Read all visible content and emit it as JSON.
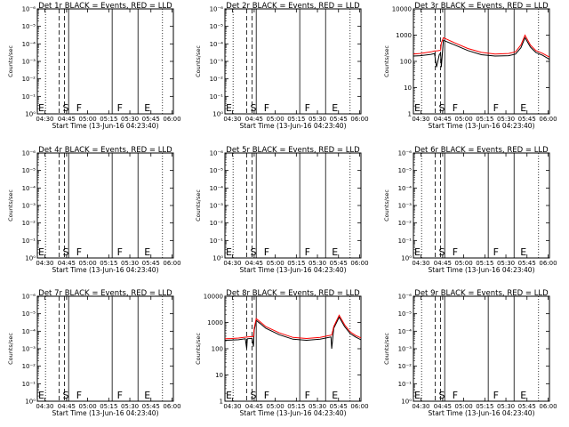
{
  "chart_data": [
    {
      "title": "Det 1r BLACK = Events, RED = LLD",
      "type": "line",
      "ylabel": "Counts/sec",
      "xlabel": "Start Time (13-Jun-16 04:23:40)",
      "x_ticks": [
        "04:30",
        "04:45",
        "05:00",
        "05:15",
        "05:30",
        "05:45",
        "06:00"
      ],
      "y_ticks": [
        "10⁰",
        "10⁻¹",
        "10⁻²",
        "10⁻³",
        "10⁻⁴",
        "10⁻⁵",
        "10⁻⁶"
      ],
      "yscale": "log",
      "ylim": [
        1e-06,
        1
      ],
      "markers": [
        "E",
        "S",
        "F",
        "F",
        "E"
      ],
      "series": []
    },
    {
      "title": "Det 2r BLACK = Events, RED = LLD",
      "type": "line",
      "ylabel": "Counts/sec",
      "xlabel": "Start Time (13-Jun-16 04:23:40)",
      "x_ticks": [
        "04:30",
        "04:45",
        "05:00",
        "05:15",
        "05:30",
        "05:45",
        "06:00"
      ],
      "y_ticks": [
        "10⁰",
        "10⁻¹",
        "10⁻²",
        "10⁻³",
        "10⁻⁴",
        "10⁻⁵",
        "10⁻⁶"
      ],
      "yscale": "log",
      "ylim": [
        1e-06,
        1
      ],
      "markers": [
        "E",
        "S",
        "F",
        "F",
        "E"
      ],
      "series": []
    },
    {
      "title": "Det 3r BLACK = Events, RED = LLD",
      "type": "line",
      "ylabel": "Counts/sec",
      "xlabel": "Start Time (13-Jun-16 04:23:40)",
      "x_ticks": [
        "04:30",
        "04:45",
        "05:00",
        "05:15",
        "05:30",
        "05:45",
        "06:00"
      ],
      "y_ticks": [
        "1",
        "10",
        "100",
        "1000",
        "10000"
      ],
      "yscale": "log",
      "ylim": [
        1,
        10000
      ],
      "markers": [
        "E",
        "S",
        "F",
        "F",
        "E"
      ],
      "series": [
        {
          "color": "#000000",
          "x": [
            0,
            0.05,
            0.13,
            0.155,
            0.17,
            0.19,
            0.2,
            0.205,
            0.22,
            0.25,
            0.3,
            0.4,
            0.5,
            0.6,
            0.7,
            0.75,
            0.79,
            0.82,
            0.86,
            0.9,
            0.95,
            1.0
          ],
          "y": [
            160,
            165,
            185,
            200,
            60,
            180,
            210,
            60,
            640,
            550,
            430,
            260,
            180,
            160,
            165,
            190,
            330,
            800,
            350,
            220,
            170,
            120
          ]
        },
        {
          "color": "#ff0000",
          "x": [
            0,
            0.05,
            0.13,
            0.155,
            0.17,
            0.19,
            0.2,
            0.205,
            0.22,
            0.25,
            0.3,
            0.4,
            0.5,
            0.6,
            0.7,
            0.75,
            0.79,
            0.82,
            0.86,
            0.9,
            0.95,
            1.0
          ],
          "y": [
            190,
            200,
            230,
            250,
            250,
            260,
            270,
            500,
            800,
            680,
            520,
            310,
            220,
            190,
            200,
            230,
            420,
            1000,
            420,
            260,
            200,
            145
          ]
        }
      ]
    },
    {
      "title": "Det 4r BLACK = Events, RED = LLD",
      "type": "line",
      "ylabel": "Counts/sec",
      "xlabel": "Start Time (13-Jun-16 04:23:40)",
      "x_ticks": [
        "04:30",
        "04:45",
        "05:00",
        "05:15",
        "05:30",
        "05:45",
        "06:00"
      ],
      "y_ticks": [
        "10⁰",
        "10⁻¹",
        "10⁻²",
        "10⁻³",
        "10⁻⁴",
        "10⁻⁵",
        "10⁻⁶"
      ],
      "yscale": "log",
      "ylim": [
        1e-06,
        1
      ],
      "markers": [
        "E",
        "S",
        "F",
        "F",
        "E"
      ],
      "series": []
    },
    {
      "title": "Det 5r BLACK = Events, RED = LLD",
      "type": "line",
      "ylabel": "Counts/sec",
      "xlabel": "Start Time (13-Jun-16 04:23:40)",
      "x_ticks": [
        "04:30",
        "04:45",
        "05:00",
        "05:15",
        "05:30",
        "05:45",
        "06:00"
      ],
      "y_ticks": [
        "10⁰",
        "10⁻¹",
        "10⁻²",
        "10⁻³",
        "10⁻⁴",
        "10⁻⁵",
        "10⁻⁶"
      ],
      "yscale": "log",
      "ylim": [
        1e-06,
        1
      ],
      "markers": [
        "E",
        "S",
        "F",
        "F",
        "E"
      ],
      "series": []
    },
    {
      "title": "Det 6r BLACK = Events, RED = LLD",
      "type": "line",
      "ylabel": "Counts/sec",
      "xlabel": "Start Time (13-Jun-16 04:23:40)",
      "x_ticks": [
        "04:30",
        "04:45",
        "05:00",
        "05:15",
        "05:30",
        "05:45",
        "06:00"
      ],
      "y_ticks": [
        "10⁰",
        "10⁻¹",
        "10⁻²",
        "10⁻³",
        "10⁻⁴",
        "10⁻⁵",
        "10⁻⁶"
      ],
      "yscale": "log",
      "ylim": [
        1e-06,
        1
      ],
      "markers": [
        "E",
        "S",
        "F",
        "F",
        "E"
      ],
      "series": []
    },
    {
      "title": "Det 7r BLACK = Events, RED = LLD",
      "type": "line",
      "ylabel": "Counts/sec",
      "xlabel": "Start Time (13-Jun-16 04:23:40)",
      "x_ticks": [
        "04:30",
        "04:45",
        "05:00",
        "05:15",
        "05:30",
        "05:45",
        "06:00"
      ],
      "y_ticks": [
        "10⁰",
        "10⁻¹",
        "10⁻²",
        "10⁻³",
        "10⁻⁴",
        "10⁻⁵",
        "10⁻⁶"
      ],
      "yscale": "log",
      "ylim": [
        1e-06,
        1
      ],
      "markers": [
        "E",
        "S",
        "F",
        "F",
        "E"
      ],
      "series": []
    },
    {
      "title": "Det 8r BLACK = Events, RED = LLD",
      "type": "line",
      "ylabel": "Counts/sec",
      "xlabel": "Start Time (13-Jun-16 04:23:40)",
      "x_ticks": [
        "04:30",
        "04:45",
        "05:00",
        "05:15",
        "05:30",
        "05:45",
        "06:00"
      ],
      "y_ticks": [
        "1",
        "10",
        "100",
        "1000",
        "10000"
      ],
      "yscale": "log",
      "ylim": [
        1,
        10000
      ],
      "markers": [
        "E",
        "S",
        "F",
        "F",
        "E"
      ],
      "series": [
        {
          "color": "#000000",
          "x": [
            0,
            0.05,
            0.1,
            0.15,
            0.16,
            0.165,
            0.2,
            0.21,
            0.215,
            0.23,
            0.26,
            0.3,
            0.4,
            0.5,
            0.6,
            0.7,
            0.78,
            0.785,
            0.8,
            0.84,
            0.88,
            0.92,
            0.96,
            1.0
          ],
          "y": [
            210,
            215,
            220,
            240,
            100,
            240,
            250,
            120,
            500,
            1200,
            900,
            600,
            340,
            230,
            210,
            230,
            280,
            100,
            600,
            1600,
            700,
            380,
            280,
            220
          ]
        },
        {
          "color": "#ff0000",
          "x": [
            0,
            0.05,
            0.1,
            0.15,
            0.16,
            0.165,
            0.2,
            0.21,
            0.215,
            0.23,
            0.26,
            0.3,
            0.4,
            0.5,
            0.6,
            0.7,
            0.78,
            0.785,
            0.8,
            0.84,
            0.88,
            0.92,
            0.96,
            1.0
          ],
          "y": [
            240,
            245,
            255,
            275,
            275,
            280,
            290,
            290,
            600,
            1400,
            1050,
            700,
            400,
            270,
            245,
            270,
            330,
            330,
            700,
            1900,
            820,
            440,
            320,
            260
          ]
        }
      ]
    },
    {
      "title": "Det 9r BLACK = Events, RED = LLD",
      "type": "line",
      "ylabel": "Counts/sec",
      "xlabel": "Start Time (13-Jun-16 04:23:40)",
      "x_ticks": [
        "04:30",
        "04:45",
        "05:00",
        "05:15",
        "05:30",
        "05:45",
        "06:00"
      ],
      "y_ticks": [
        "10⁰",
        "10⁻¹",
        "10⁻²",
        "10⁻³",
        "10⁻⁴",
        "10⁻⁵",
        "10⁻⁶"
      ],
      "yscale": "log",
      "ylim": [
        1e-06,
        1
      ],
      "markers": [
        "E",
        "S",
        "F",
        "F",
        "E"
      ],
      "series": []
    }
  ]
}
